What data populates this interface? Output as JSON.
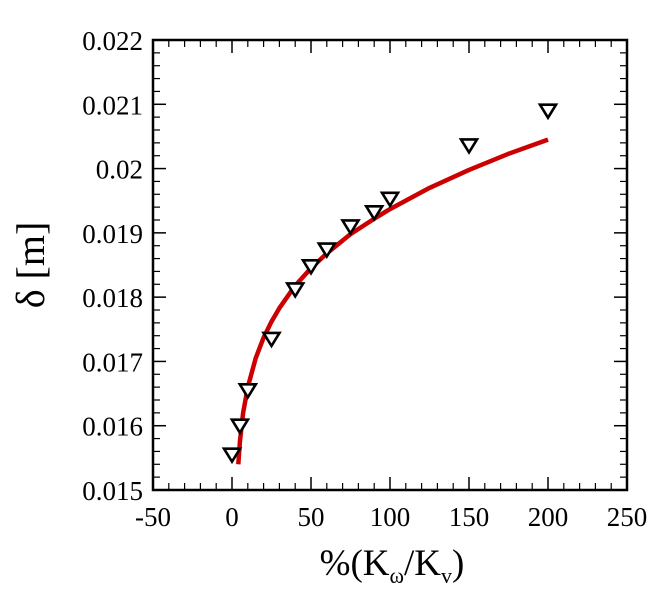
{
  "chart_data": {
    "type": "scatter",
    "xlabel": {
      "main": "%(K",
      "sub1": "ω",
      "mid": "/K",
      "sub2": "v",
      "end": ")"
    },
    "ylabel": "δ [m]",
    "xlim": [
      -50,
      250
    ],
    "ylim": [
      0.015,
      0.022
    ],
    "x_ticks": [
      -50,
      0,
      50,
      100,
      150,
      200,
      250
    ],
    "x_tick_labels": [
      "-50",
      "0",
      "50",
      "100",
      "150",
      "200",
      "250"
    ],
    "y_ticks": [
      0.015,
      0.016,
      0.017,
      0.018,
      0.019,
      0.02,
      0.021,
      0.022
    ],
    "y_tick_labels": [
      "0.015",
      "0.016",
      "0.017",
      "0.018",
      "0.019",
      "0.02",
      "0.021",
      "0.022"
    ],
    "grid": false,
    "series": [
      {
        "marker": "triangle-down",
        "color": "#000000",
        "points": [
          {
            "x": 0,
            "y": 0.01555
          },
          {
            "x": 5,
            "y": 0.016
          },
          {
            "x": 10,
            "y": 0.01655
          },
          {
            "x": 25,
            "y": 0.01735
          },
          {
            "x": 40,
            "y": 0.01812
          },
          {
            "x": 50,
            "y": 0.01848
          },
          {
            "x": 60,
            "y": 0.01874
          },
          {
            "x": 75,
            "y": 0.0191
          },
          {
            "x": 90,
            "y": 0.01932
          },
          {
            "x": 100,
            "y": 0.01953
          },
          {
            "x": 150,
            "y": 0.02036
          },
          {
            "x": 200,
            "y": 0.0209
          }
        ]
      },
      {
        "marker": "line",
        "color": "#cc0000",
        "points": [
          {
            "x": 4,
            "y": 0.0154
          },
          {
            "x": 5,
            "y": 0.01575
          },
          {
            "x": 7,
            "y": 0.0162
          },
          {
            "x": 10,
            "y": 0.0166
          },
          {
            "x": 15,
            "y": 0.01705
          },
          {
            "x": 20,
            "y": 0.01737
          },
          {
            "x": 25,
            "y": 0.01762
          },
          {
            "x": 30,
            "y": 0.01783
          },
          {
            "x": 40,
            "y": 0.01818
          },
          {
            "x": 50,
            "y": 0.01845
          },
          {
            "x": 60,
            "y": 0.01868
          },
          {
            "x": 75,
            "y": 0.01898
          },
          {
            "x": 90,
            "y": 0.01922
          },
          {
            "x": 100,
            "y": 0.01937
          },
          {
            "x": 125,
            "y": 0.0197
          },
          {
            "x": 150,
            "y": 0.01998
          },
          {
            "x": 175,
            "y": 0.02023
          },
          {
            "x": 200,
            "y": 0.02045
          }
        ]
      }
    ]
  }
}
